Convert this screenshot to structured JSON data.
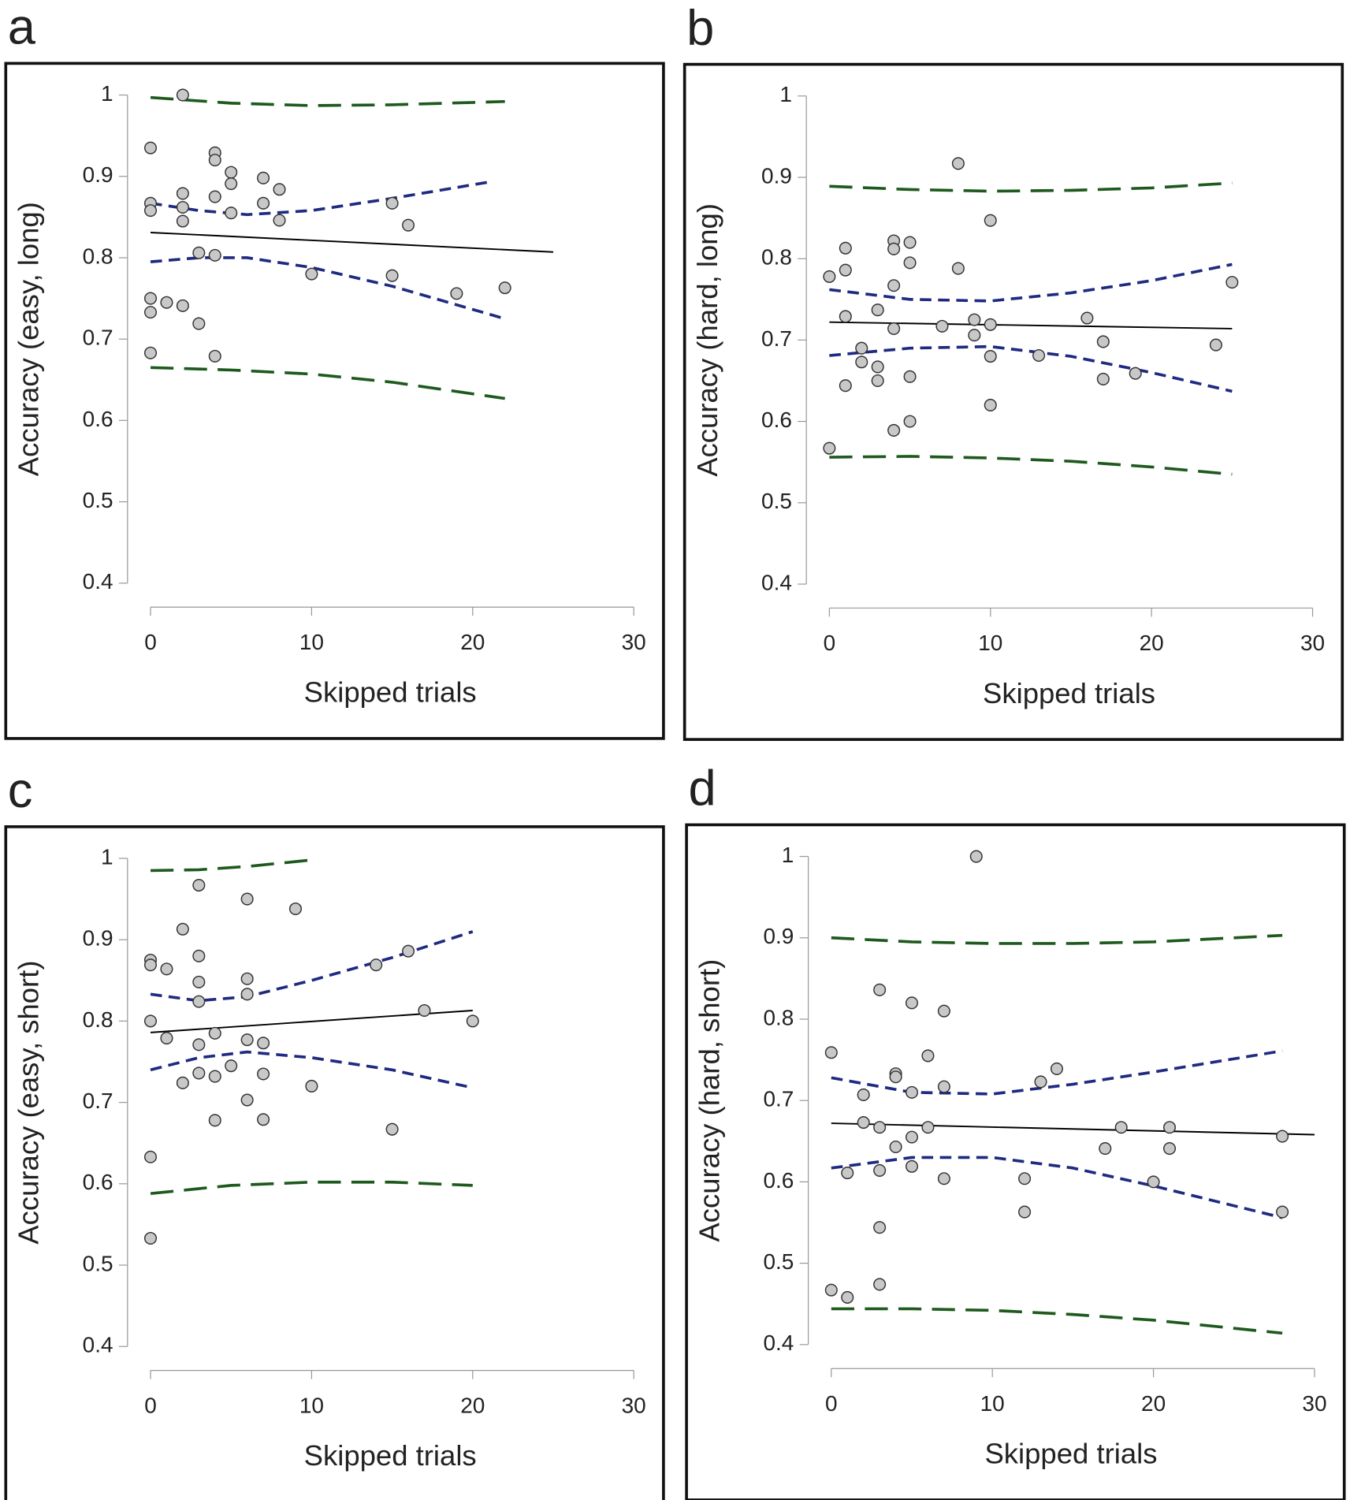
{
  "chart_data": [
    {
      "label": "a",
      "type": "scatter",
      "xlabel": "Skipped trials",
      "ylabel": "Accuracy (easy, long)",
      "xlim": [
        0,
        30
      ],
      "ylim": [
        0.4,
        1
      ],
      "xticks": [
        0,
        10,
        20,
        30
      ],
      "yticks": [
        0.4,
        0.5,
        0.6,
        0.7,
        0.8,
        0.9,
        1
      ],
      "series": [
        {
          "style": "marker",
          "color": "#c8c8c8",
          "x": [
            0,
            0,
            0,
            0,
            0,
            0,
            1,
            2,
            2,
            2,
            2,
            2,
            3,
            3,
            4,
            4,
            4,
            4,
            4,
            5,
            5,
            5,
            7,
            7,
            8,
            8,
            10,
            15,
            15,
            16,
            19,
            22
          ],
          "values": [
            0.935,
            0.867,
            0.858,
            0.75,
            0.733,
            0.683,
            0.745,
            1.0,
            0.879,
            0.862,
            0.845,
            0.741,
            0.806,
            0.719,
            0.929,
            0.92,
            0.875,
            0.803,
            0.679,
            0.905,
            0.891,
            0.855,
            0.898,
            0.867,
            0.884,
            0.846,
            0.78,
            0.867,
            0.778,
            0.84,
            0.756,
            0.763
          ]
        },
        {
          "style": "solid",
          "color": "#000000",
          "x": [
            0,
            25
          ],
          "values": [
            0.831,
            0.807
          ]
        },
        {
          "style": "dashed",
          "color": "#1f2a80",
          "x": [
            0,
            3,
            6,
            10,
            15,
            21
          ],
          "values": [
            0.867,
            0.858,
            0.853,
            0.858,
            0.873,
            0.893
          ]
        },
        {
          "style": "dashed",
          "color": "#1f2a80",
          "x": [
            0,
            3,
            6,
            10,
            15,
            22
          ],
          "values": [
            0.795,
            0.8,
            0.8,
            0.788,
            0.765,
            0.725
          ]
        },
        {
          "style": "long-dashed",
          "color": "#1e5a1e",
          "x": [
            0,
            5,
            10,
            15,
            22
          ],
          "values": [
            0.997,
            0.99,
            0.987,
            0.988,
            0.992
          ]
        },
        {
          "style": "long-dashed",
          "color": "#1e5a1e",
          "x": [
            0,
            5,
            10,
            15,
            22
          ],
          "values": [
            0.665,
            0.662,
            0.657,
            0.647,
            0.627
          ]
        }
      ]
    },
    {
      "label": "b",
      "type": "scatter",
      "xlabel": "Skipped trials",
      "ylabel": "Accuracy (hard, long)",
      "xlim": [
        0,
        30
      ],
      "ylim": [
        0.4,
        1
      ],
      "xticks": [
        0,
        10,
        20,
        30
      ],
      "yticks": [
        0.4,
        0.5,
        0.6,
        0.7,
        0.8,
        0.9,
        1
      ],
      "series": [
        {
          "style": "marker",
          "color": "#c8c8c8",
          "x": [
            0,
            0,
            1,
            1,
            1,
            1,
            2,
            2,
            3,
            3,
            3,
            4,
            4,
            4,
            4,
            4,
            5,
            5,
            5,
            5,
            7,
            8,
            8,
            9,
            9,
            10,
            10,
            10,
            10,
            13,
            16,
            17,
            17,
            19,
            24,
            25
          ],
          "values": [
            0.778,
            0.567,
            0.813,
            0.786,
            0.729,
            0.644,
            0.69,
            0.673,
            0.737,
            0.667,
            0.65,
            0.822,
            0.812,
            0.767,
            0.714,
            0.589,
            0.82,
            0.795,
            0.655,
            0.6,
            0.717,
            0.917,
            0.788,
            0.725,
            0.706,
            0.847,
            0.719,
            0.68,
            0.62,
            0.681,
            0.727,
            0.698,
            0.652,
            0.659,
            0.694,
            0.771
          ]
        },
        {
          "style": "solid",
          "color": "#000000",
          "x": [
            0,
            25
          ],
          "values": [
            0.722,
            0.714
          ]
        },
        {
          "style": "dashed",
          "color": "#1f2a80",
          "x": [
            0,
            5,
            10,
            15,
            20,
            25
          ],
          "values": [
            0.762,
            0.75,
            0.748,
            0.758,
            0.773,
            0.793
          ]
        },
        {
          "style": "dashed",
          "color": "#1f2a80",
          "x": [
            0,
            5,
            10,
            15,
            20,
            25
          ],
          "values": [
            0.681,
            0.69,
            0.692,
            0.68,
            0.66,
            0.637
          ]
        },
        {
          "style": "long-dashed",
          "color": "#1e5a1e",
          "x": [
            0,
            5,
            10,
            15,
            20,
            25
          ],
          "values": [
            0.889,
            0.885,
            0.883,
            0.884,
            0.887,
            0.893
          ]
        },
        {
          "style": "long-dashed",
          "color": "#1e5a1e",
          "x": [
            0,
            5,
            10,
            15,
            20,
            25
          ],
          "values": [
            0.556,
            0.557,
            0.555,
            0.551,
            0.544,
            0.535
          ]
        }
      ]
    },
    {
      "label": "c",
      "type": "scatter",
      "xlabel": "Skipped trials",
      "ylabel": "Accuracy (easy, short)",
      "xlim": [
        0,
        30
      ],
      "ylim": [
        0.4,
        1
      ],
      "xticks": [
        0,
        10,
        20,
        30
      ],
      "yticks": [
        0.4,
        0.5,
        0.6,
        0.7,
        0.8,
        0.9,
        1
      ],
      "series": [
        {
          "style": "marker",
          "color": "#c8c8c8",
          "x": [
            0,
            0,
            0,
            0,
            0,
            1,
            1,
            2,
            2,
            3,
            3,
            3,
            3,
            3,
            3,
            4,
            4,
            4,
            5,
            6,
            6,
            6,
            6,
            6,
            7,
            7,
            7,
            9,
            10,
            14,
            15,
            16,
            17,
            20
          ],
          "values": [
            0.875,
            0.869,
            0.8,
            0.633,
            0.533,
            0.864,
            0.779,
            0.913,
            0.724,
            0.967,
            0.88,
            0.848,
            0.824,
            0.771,
            0.736,
            0.785,
            0.732,
            0.678,
            0.745,
            0.95,
            0.852,
            0.833,
            0.777,
            0.703,
            0.773,
            0.735,
            0.679,
            0.938,
            0.72,
            0.869,
            0.667,
            0.886,
            0.813,
            0.8
          ]
        },
        {
          "style": "solid",
          "color": "#000000",
          "x": [
            0,
            20
          ],
          "values": [
            0.786,
            0.813
          ]
        },
        {
          "style": "dashed",
          "color": "#1f2a80",
          "x": [
            0,
            3,
            6,
            10,
            15,
            20
          ],
          "values": [
            0.833,
            0.825,
            0.83,
            0.85,
            0.878,
            0.91
          ]
        },
        {
          "style": "dashed",
          "color": "#1f2a80",
          "x": [
            0,
            3,
            6,
            10,
            15,
            20
          ],
          "values": [
            0.74,
            0.755,
            0.762,
            0.755,
            0.74,
            0.718
          ]
        },
        {
          "style": "long-dashed",
          "color": "#1e5a1e",
          "x": [
            0,
            3,
            6,
            10
          ],
          "values": [
            0.985,
            0.986,
            0.99,
            0.998
          ]
        },
        {
          "style": "long-dashed",
          "color": "#1e5a1e",
          "x": [
            0,
            5,
            10,
            15,
            20
          ],
          "values": [
            0.588,
            0.598,
            0.602,
            0.602,
            0.598
          ]
        }
      ]
    },
    {
      "label": "d",
      "type": "scatter",
      "xlabel": "Skipped trials",
      "ylabel": "Accuracy (hard, short)",
      "xlim": [
        0,
        30
      ],
      "ylim": [
        0.4,
        1
      ],
      "xticks": [
        0,
        10,
        20,
        30
      ],
      "yticks": [
        0.4,
        0.5,
        0.6,
        0.7,
        0.8,
        0.9,
        1
      ],
      "series": [
        {
          "style": "marker",
          "color": "#c8c8c8",
          "x": [
            0,
            0,
            1,
            1,
            2,
            2,
            3,
            3,
            3,
            3,
            3,
            4,
            4,
            4,
            5,
            5,
            5,
            5,
            6,
            6,
            7,
            7,
            7,
            9,
            12,
            12,
            13,
            14,
            17,
            18,
            20,
            21,
            21,
            28,
            28
          ],
          "values": [
            0.759,
            0.467,
            0.611,
            0.458,
            0.707,
            0.673,
            0.836,
            0.667,
            0.614,
            0.544,
            0.474,
            0.733,
            0.729,
            0.643,
            0.82,
            0.71,
            0.655,
            0.619,
            0.755,
            0.667,
            0.81,
            0.717,
            0.604,
            1.0,
            0.604,
            0.563,
            0.723,
            0.739,
            0.641,
            0.667,
            0.6,
            0.667,
            0.641,
            0.656,
            0.563
          ]
        },
        {
          "style": "solid",
          "color": "#000000",
          "x": [
            0,
            30
          ],
          "values": [
            0.672,
            0.658
          ]
        },
        {
          "style": "dashed",
          "color": "#1f2a80",
          "x": [
            0,
            5,
            10,
            15,
            20,
            28
          ],
          "values": [
            0.728,
            0.71,
            0.708,
            0.72,
            0.735,
            0.761
          ]
        },
        {
          "style": "dashed",
          "color": "#1f2a80",
          "x": [
            0,
            5,
            10,
            15,
            20,
            28
          ],
          "values": [
            0.617,
            0.63,
            0.63,
            0.617,
            0.595,
            0.556
          ]
        },
        {
          "style": "long-dashed",
          "color": "#1e5a1e",
          "x": [
            0,
            5,
            10,
            15,
            20,
            28
          ],
          "values": [
            0.9,
            0.895,
            0.893,
            0.893,
            0.895,
            0.903
          ]
        },
        {
          "style": "long-dashed",
          "color": "#1e5a1e",
          "x": [
            0,
            5,
            10,
            15,
            20,
            28
          ],
          "values": [
            0.444,
            0.444,
            0.442,
            0.437,
            0.43,
            0.414
          ]
        }
      ]
    }
  ]
}
